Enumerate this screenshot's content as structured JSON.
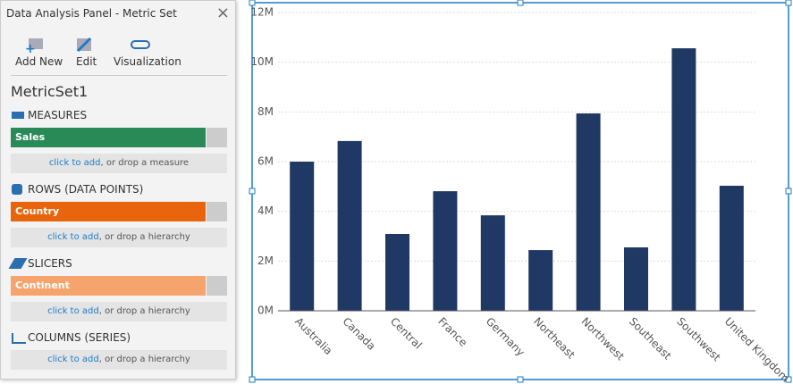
{
  "panel": {
    "title": "Data Analysis Panel - Metric Set",
    "close": "×",
    "toolbar": [
      "Add New",
      "Edit",
      "Visualization"
    ],
    "metric_set": "MetricSet1",
    "sections": [
      {
        "title": "MEASURES",
        "field": "Sales",
        "link": "click to add",
        "drop_text": ", or drop a measure"
      },
      {
        "title": "ROWS (DATA POINTS)",
        "field": "Country",
        "link": "click to add",
        "drop_text": ", or drop a hierarchy"
      },
      {
        "title": "SLICERS",
        "field": "Continent",
        "link": "click to add",
        "drop_text": ", or drop a hierarchy"
      },
      {
        "title": "COLUMNS (SERIES)",
        "link": "click to add",
        "drop_text": ", or drop a hierarchy"
      }
    ]
  },
  "chart_data": {
    "type": "bar",
    "categories": [
      "Australia",
      "Canada",
      "Central",
      "France",
      "Germany",
      "Northeast",
      "Northwest",
      "Southeast",
      "Southwest",
      "United Kingdom"
    ],
    "values": [
      6000000,
      6830000,
      3090000,
      4810000,
      3840000,
      2440000,
      7940000,
      2550000,
      10560000,
      5030000
    ],
    "color": "#1f3864",
    "ylim": [
      0,
      12000000
    ],
    "yticks": [
      {
        "value": 0,
        "label": "0M"
      },
      {
        "value": 2000000,
        "label": "2M"
      },
      {
        "value": 4000000,
        "label": "4M"
      },
      {
        "value": 6000000,
        "label": "6M"
      },
      {
        "value": 8000000,
        "label": "8M"
      },
      {
        "value": 10000000,
        "label": "10M"
      },
      {
        "value": 12000000,
        "label": "12M"
      }
    ],
    "grid": true
  }
}
